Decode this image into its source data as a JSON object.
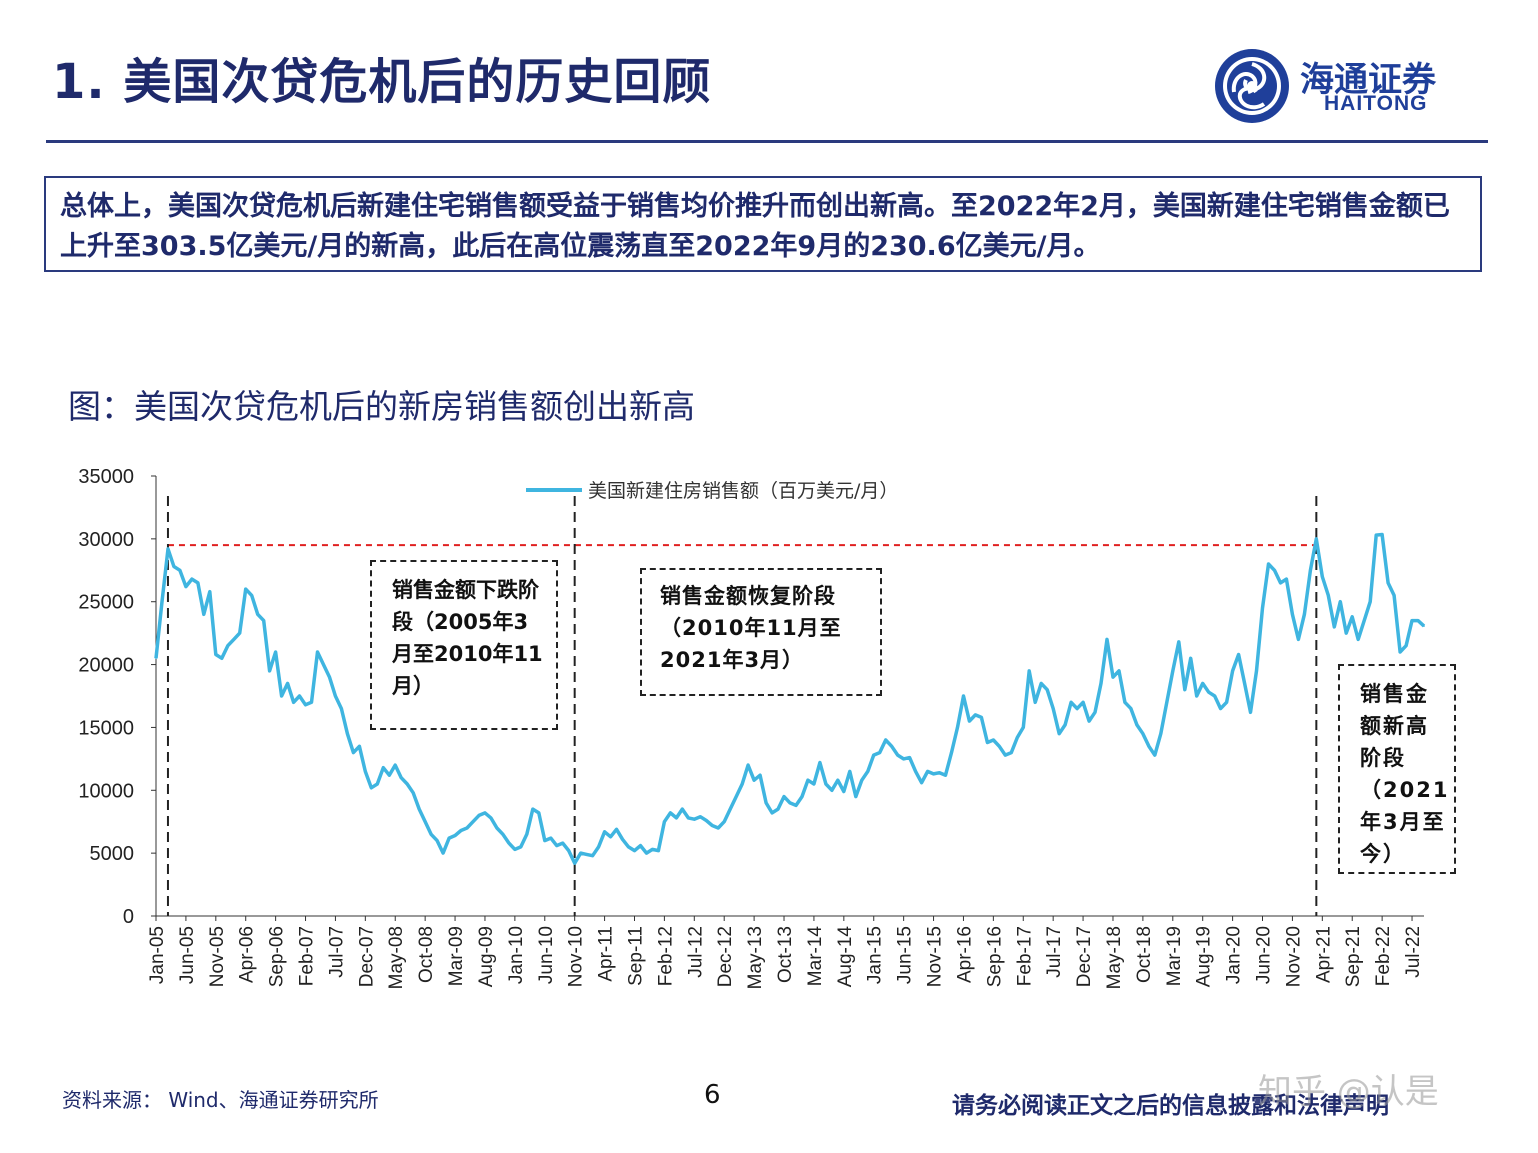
{
  "page": {
    "title": "1. 美国次贷危机后的历史回顾",
    "logo_cn": "海通证券",
    "logo_en": "HAITONG",
    "summary": "总体上，美国次贷危机后新建住宅销售额受益于销售均价推升而创出新高。至2022年2月，美国新建住宅销售金额已上升至303.5亿美元/月的新高，此后在高位震荡直至2022年9月的230.6亿美元/月。",
    "figure_title": "图：美国次贷危机后的新房销售额创出新高",
    "source": "资料来源： Wind、海通证券研究所",
    "page_number": "6",
    "disclaimer": "请务必阅读正文之后的信息披露和法律声明",
    "watermark": "知乎 @认是"
  },
  "annotations": {
    "phase1": "销售金额下跌阶段（2005年3月至2010年11月）",
    "phase2": "销售金额恢复阶段（2010年11月至2021年3月）",
    "phase3": "销售金额新高阶段（2021年3月至今）"
  },
  "colors": {
    "line": "#3fb5e0",
    "reference": "#e02020",
    "text": "#1f2a6b"
  },
  "chart_data": {
    "type": "line",
    "title": "",
    "xlabel": "",
    "ylabel": "",
    "ylim": [
      0,
      35000
    ],
    "yticks": [
      0,
      5000,
      10000,
      15000,
      20000,
      25000,
      30000,
      35000
    ],
    "xtick_labels": [
      "Jan-05",
      "Jun-05",
      "Nov-05",
      "Apr-06",
      "Sep-06",
      "Feb-07",
      "Jul-07",
      "Dec-07",
      "May-08",
      "Oct-08",
      "Mar-09",
      "Aug-09",
      "Jan-10",
      "Jun-10",
      "Nov-10",
      "Apr-11",
      "Sep-11",
      "Feb-12",
      "Jul-12",
      "Dec-12",
      "May-13",
      "Oct-13",
      "Mar-14",
      "Aug-14",
      "Jan-15",
      "Jun-15",
      "Nov-15",
      "Apr-16",
      "Sep-16",
      "Feb-17",
      "Jul-17",
      "Dec-17",
      "May-18",
      "Oct-18",
      "Mar-19",
      "Aug-19",
      "Jan-20",
      "Jun-20",
      "Nov-20",
      "Apr-21",
      "Sep-21",
      "Feb-22",
      "Jul-22"
    ],
    "legend": "top-center",
    "reference_line": {
      "y": 29500,
      "style": "dashed",
      "color": "#e02020"
    },
    "vertical_markers": [
      "Mar-05",
      "Nov-10",
      "Mar-21"
    ],
    "series": [
      {
        "name": "美国新建住房销售额（百万美元/月）",
        "points": [
          [
            "Jan-05",
            20500
          ],
          [
            "Feb-05",
            25000
          ],
          [
            "Mar-05",
            29200
          ],
          [
            "Apr-05",
            27800
          ],
          [
            "May-05",
            27500
          ],
          [
            "Jun-05",
            26200
          ],
          [
            "Jul-05",
            26800
          ],
          [
            "Aug-05",
            26500
          ],
          [
            "Sep-05",
            24000
          ],
          [
            "Oct-05",
            25800
          ],
          [
            "Nov-05",
            20800
          ],
          [
            "Dec-05",
            20500
          ],
          [
            "Jan-06",
            21500
          ],
          [
            "Feb-06",
            22000
          ],
          [
            "Mar-06",
            22500
          ],
          [
            "Apr-06",
            26000
          ],
          [
            "May-06",
            25500
          ],
          [
            "Jun-06",
            24000
          ],
          [
            "Jul-06",
            23500
          ],
          [
            "Aug-06",
            19500
          ],
          [
            "Sep-06",
            21000
          ],
          [
            "Oct-06",
            17500
          ],
          [
            "Nov-06",
            18500
          ],
          [
            "Dec-06",
            17000
          ],
          [
            "Jan-07",
            17500
          ],
          [
            "Feb-07",
            16800
          ],
          [
            "Mar-07",
            17000
          ],
          [
            "Apr-07",
            21000
          ],
          [
            "May-07",
            20000
          ],
          [
            "Jun-07",
            19000
          ],
          [
            "Jul-07",
            17500
          ],
          [
            "Aug-07",
            16500
          ],
          [
            "Sep-07",
            14500
          ],
          [
            "Oct-07",
            13000
          ],
          [
            "Nov-07",
            13500
          ],
          [
            "Dec-07",
            11500
          ],
          [
            "Jan-08",
            10200
          ],
          [
            "Feb-08",
            10500
          ],
          [
            "Mar-08",
            11800
          ],
          [
            "Apr-08",
            11200
          ],
          [
            "May-08",
            12000
          ],
          [
            "Jun-08",
            11000
          ],
          [
            "Jul-08",
            10500
          ],
          [
            "Aug-08",
            9800
          ],
          [
            "Sep-08",
            8500
          ],
          [
            "Oct-08",
            7500
          ],
          [
            "Nov-08",
            6500
          ],
          [
            "Dec-08",
            6000
          ],
          [
            "Jan-09",
            5000
          ],
          [
            "Feb-09",
            6200
          ],
          [
            "Mar-09",
            6400
          ],
          [
            "Apr-09",
            6800
          ],
          [
            "May-09",
            7000
          ],
          [
            "Jun-09",
            7500
          ],
          [
            "Jul-09",
            8000
          ],
          [
            "Aug-09",
            8200
          ],
          [
            "Sep-09",
            7800
          ],
          [
            "Oct-09",
            7000
          ],
          [
            "Nov-09",
            6500
          ],
          [
            "Dec-09",
            5800
          ],
          [
            "Jan-10",
            5300
          ],
          [
            "Feb-10",
            5500
          ],
          [
            "Mar-10",
            6500
          ],
          [
            "Apr-10",
            8500
          ],
          [
            "May-10",
            8200
          ],
          [
            "Jun-10",
            6000
          ],
          [
            "Jul-10",
            6200
          ],
          [
            "Aug-10",
            5600
          ],
          [
            "Sep-10",
            5800
          ],
          [
            "Oct-10",
            5200
          ],
          [
            "Nov-10",
            4200
          ],
          [
            "Dec-10",
            5000
          ],
          [
            "Jan-11",
            4900
          ],
          [
            "Feb-11",
            4800
          ],
          [
            "Mar-11",
            5500
          ],
          [
            "Apr-11",
            6700
          ],
          [
            "May-11",
            6300
          ],
          [
            "Jun-11",
            6900
          ],
          [
            "Jul-11",
            6100
          ],
          [
            "Aug-11",
            5500
          ],
          [
            "Sep-11",
            5200
          ],
          [
            "Oct-11",
            5600
          ],
          [
            "Nov-11",
            5000
          ],
          [
            "Dec-11",
            5300
          ],
          [
            "Jan-12",
            5200
          ],
          [
            "Feb-12",
            7500
          ],
          [
            "Mar-12",
            8200
          ],
          [
            "Apr-12",
            7800
          ],
          [
            "May-12",
            8500
          ],
          [
            "Jun-12",
            7800
          ],
          [
            "Jul-12",
            7700
          ],
          [
            "Aug-12",
            7900
          ],
          [
            "Sep-12",
            7600
          ],
          [
            "Oct-12",
            7200
          ],
          [
            "Nov-12",
            7000
          ],
          [
            "Dec-12",
            7500
          ],
          [
            "Jan-13",
            8500
          ],
          [
            "Feb-13",
            9500
          ],
          [
            "Mar-13",
            10500
          ],
          [
            "Apr-13",
            12000
          ],
          [
            "May-13",
            10800
          ],
          [
            "Jun-13",
            11200
          ],
          [
            "Jul-13",
            9000
          ],
          [
            "Aug-13",
            8200
          ],
          [
            "Sep-13",
            8500
          ],
          [
            "Oct-13",
            9500
          ],
          [
            "Nov-13",
            9000
          ],
          [
            "Dec-13",
            8800
          ],
          [
            "Jan-14",
            9500
          ],
          [
            "Feb-14",
            10800
          ],
          [
            "Mar-14",
            10500
          ],
          [
            "Apr-14",
            12200
          ],
          [
            "May-14",
            10500
          ],
          [
            "Jun-14",
            10000
          ],
          [
            "Jul-14",
            10800
          ],
          [
            "Aug-14",
            9900
          ],
          [
            "Sep-14",
            11500
          ],
          [
            "Oct-14",
            9500
          ],
          [
            "Nov-14",
            10800
          ],
          [
            "Dec-14",
            11500
          ],
          [
            "Jan-15",
            12800
          ],
          [
            "Feb-15",
            13000
          ],
          [
            "Mar-15",
            14000
          ],
          [
            "Apr-15",
            13500
          ],
          [
            "May-15",
            12800
          ],
          [
            "Jun-15",
            12500
          ],
          [
            "Jul-15",
            12600
          ],
          [
            "Aug-15",
            11500
          ],
          [
            "Sep-15",
            10600
          ],
          [
            "Oct-15",
            11500
          ],
          [
            "Nov-15",
            11300
          ],
          [
            "Dec-15",
            11400
          ],
          [
            "Jan-16",
            11200
          ],
          [
            "Feb-16",
            13000
          ],
          [
            "Mar-16",
            15000
          ],
          [
            "Apr-16",
            17500
          ],
          [
            "May-16",
            15500
          ],
          [
            "Jun-16",
            16000
          ],
          [
            "Jul-16",
            15800
          ],
          [
            "Aug-16",
            13800
          ],
          [
            "Sep-16",
            14000
          ],
          [
            "Oct-16",
            13500
          ],
          [
            "Nov-16",
            12800
          ],
          [
            "Dec-16",
            13000
          ],
          [
            "Jan-17",
            14200
          ],
          [
            "Feb-17",
            15000
          ],
          [
            "Mar-17",
            19500
          ],
          [
            "Apr-17",
            17000
          ],
          [
            "May-17",
            18500
          ],
          [
            "Jun-17",
            18000
          ],
          [
            "Jul-17",
            16500
          ],
          [
            "Aug-17",
            14500
          ],
          [
            "Sep-17",
            15200
          ],
          [
            "Oct-17",
            17000
          ],
          [
            "Nov-17",
            16500
          ],
          [
            "Dec-17",
            17000
          ],
          [
            "Jan-18",
            15500
          ],
          [
            "Feb-18",
            16200
          ],
          [
            "Mar-18",
            18500
          ],
          [
            "Apr-18",
            22000
          ],
          [
            "May-18",
            19000
          ],
          [
            "Jun-18",
            19500
          ],
          [
            "Jul-18",
            17000
          ],
          [
            "Aug-18",
            16500
          ],
          [
            "Sep-18",
            15200
          ],
          [
            "Oct-18",
            14500
          ],
          [
            "Nov-18",
            13500
          ],
          [
            "Dec-18",
            12800
          ],
          [
            "Jan-19",
            14500
          ],
          [
            "Feb-19",
            17000
          ],
          [
            "Mar-19",
            19500
          ],
          [
            "Apr-19",
            21800
          ],
          [
            "May-19",
            18000
          ],
          [
            "Jun-19",
            20500
          ],
          [
            "Jul-19",
            17500
          ],
          [
            "Aug-19",
            18500
          ],
          [
            "Sep-19",
            17800
          ],
          [
            "Oct-19",
            17500
          ],
          [
            "Nov-19",
            16500
          ],
          [
            "Dec-19",
            17000
          ],
          [
            "Jan-20",
            19500
          ],
          [
            "Feb-20",
            20800
          ],
          [
            "Mar-20",
            18500
          ],
          [
            "Apr-20",
            16200
          ],
          [
            "May-20",
            19500
          ],
          [
            "Jun-20",
            24500
          ],
          [
            "Jul-20",
            28000
          ],
          [
            "Aug-20",
            27500
          ],
          [
            "Sep-20",
            26500
          ],
          [
            "Oct-20",
            26800
          ],
          [
            "Nov-20",
            24000
          ],
          [
            "Dec-20",
            22000
          ],
          [
            "Jan-21",
            24000
          ],
          [
            "Feb-21",
            27500
          ],
          [
            "Mar-21",
            30000
          ],
          [
            "Apr-21",
            27000
          ],
          [
            "May-21",
            25500
          ],
          [
            "Jun-21",
            23000
          ],
          [
            "Jul-21",
            25000
          ],
          [
            "Aug-21",
            22500
          ],
          [
            "Sep-21",
            23800
          ],
          [
            "Oct-21",
            22000
          ],
          [
            "Nov-21",
            23500
          ],
          [
            "Dec-21",
            25000
          ],
          [
            "Jan-22",
            30300
          ],
          [
            "Feb-22",
            30350
          ],
          [
            "Mar-22",
            26500
          ],
          [
            "Apr-22",
            25500
          ],
          [
            "May-22",
            21000
          ],
          [
            "Jun-22",
            21500
          ],
          [
            "Jul-22",
            23500
          ],
          [
            "Aug-22",
            23500
          ],
          [
            "Sep-22",
            23060
          ]
        ]
      }
    ]
  }
}
